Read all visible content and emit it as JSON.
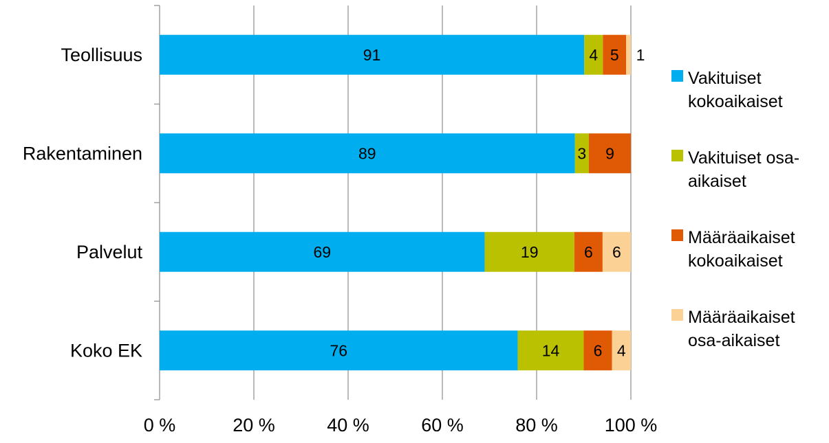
{
  "chart_data": {
    "type": "bar",
    "orientation": "horizontal",
    "stacked": "percent",
    "categories": [
      "Teollisuus",
      "Rakentaminen",
      "Palvelut",
      "Koko EK"
    ],
    "series": [
      {
        "name": "Vakituiset kokoaikaiset",
        "color": "#00aeef",
        "values": [
          91,
          89,
          69,
          76
        ]
      },
      {
        "name": "Vakituiset osa-aikaiset",
        "color": "#bac100",
        "values": [
          4,
          3,
          19,
          14
        ]
      },
      {
        "name": "Määräaikaiset kokoaikaiset",
        "color": "#e05a06",
        "values": [
          5,
          9,
          6,
          6
        ]
      },
      {
        "name": "Määräaikaiset osa-aikaiset",
        "color": "#fbd195",
        "values": [
          1,
          null,
          6,
          4
        ]
      }
    ],
    "legend_lines": [
      [
        "Vakituiset",
        "kokoaikaiset"
      ],
      [
        "Vakituiset osa-",
        "aikaiset"
      ],
      [
        "Määräaikaiset",
        "kokoaikaiset"
      ],
      [
        "Määräaikaiset",
        "osa-aikaiset"
      ]
    ],
    "x_ticks": [
      "0 %",
      "20 %",
      "40 %",
      "60 %",
      "80 %",
      "100 %"
    ],
    "xlim": [
      0,
      100
    ],
    "grid": true,
    "legend_position": "right",
    "title": "",
    "xlabel": "",
    "ylabel": ""
  }
}
